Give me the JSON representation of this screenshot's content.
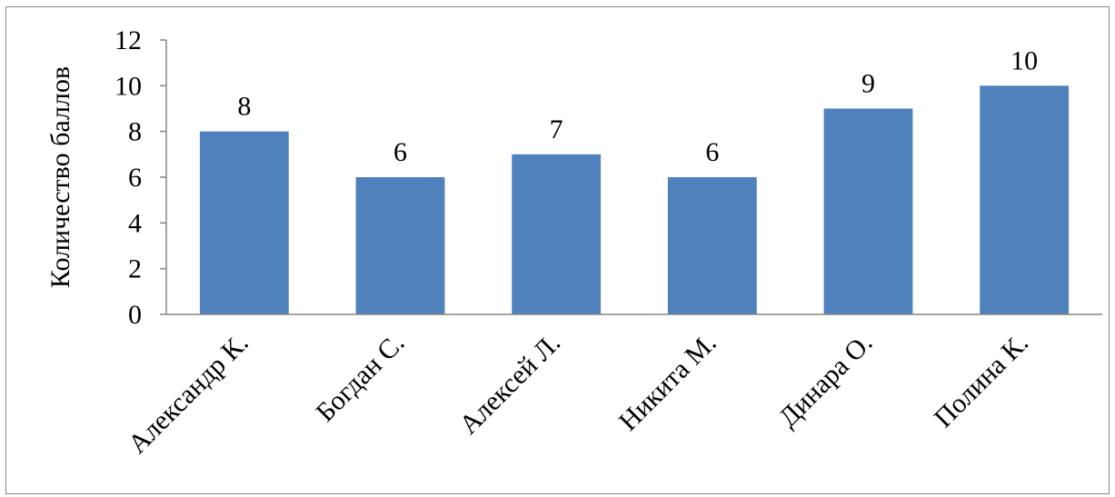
{
  "chart_data": {
    "type": "bar",
    "title": "",
    "xlabel": "",
    "ylabel": "Количество баллов",
    "categories": [
      "Александр К.",
      "Богдан С.",
      "Алексей Л.",
      "Никита М.",
      "Динара О.",
      "Полина К."
    ],
    "series": [
      {
        "values": [
          8,
          6,
          7,
          6,
          9,
          10
        ]
      }
    ],
    "data_labels": [
      "8",
      "6",
      "7",
      "6",
      "9",
      "10"
    ],
    "ylim": [
      0,
      12
    ],
    "yticks": [
      0,
      2,
      4,
      6,
      8,
      10,
      12
    ],
    "ytick_labels": [
      "0",
      "2",
      "4",
      "6",
      "8",
      "10",
      "12"
    ],
    "grid": false,
    "legend": "none",
    "colors": {
      "bar": "#4F81BD",
      "axis": "#868686",
      "border": "#868686"
    }
  }
}
